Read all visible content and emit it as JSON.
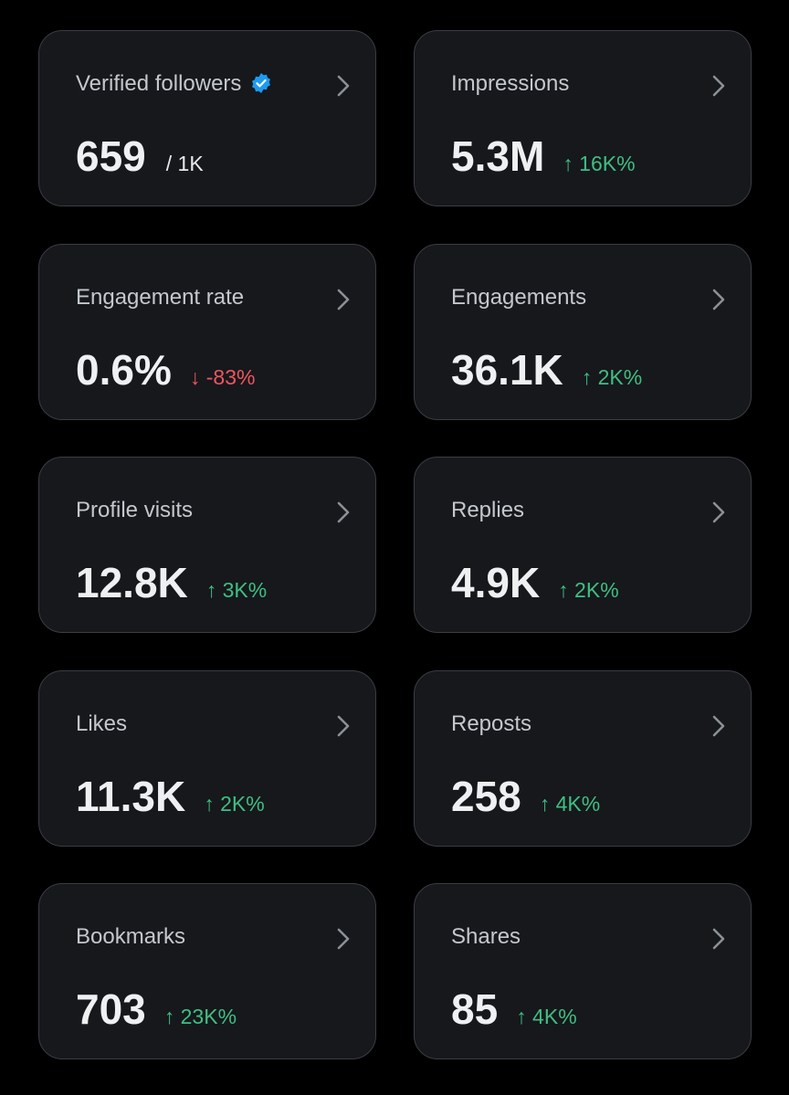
{
  "cards": [
    {
      "title": "Verified followers",
      "value": "659",
      "suffix": "/ 1K"
    },
    {
      "title": "Impressions",
      "value": "5.3M",
      "change": "↑ 16K%",
      "color": "#3fbf82"
    },
    {
      "title": "Engagement rate",
      "value": "0.6%",
      "change": "↓ -83%",
      "color": "#f0555f"
    },
    {
      "title": "Engagements",
      "value": "36.1K",
      "change": "↑ 2K%",
      "color": "#3fbf82"
    },
    {
      "title": "Profile visits",
      "value": "12.8K",
      "change": "↑ 3K%",
      "color": "#3fbf82"
    },
    {
      "title": "Replies",
      "value": "4.9K",
      "change": "↑ 2K%",
      "color": "#3fbf82"
    },
    {
      "title": "Likes",
      "value": "11.3K",
      "change": "↑ 2K%",
      "color": "#3fbf82"
    },
    {
      "title": "Reposts",
      "value": "258",
      "change": "↑ 4K%",
      "color": "#3fbf82"
    },
    {
      "title": "Bookmarks",
      "value": "703",
      "change": "↑ 23K%",
      "color": "#3fbf82"
    },
    {
      "title": "Shares",
      "value": "85",
      "change": "↑ 4K%",
      "color": "#3fbf82"
    }
  ]
}
